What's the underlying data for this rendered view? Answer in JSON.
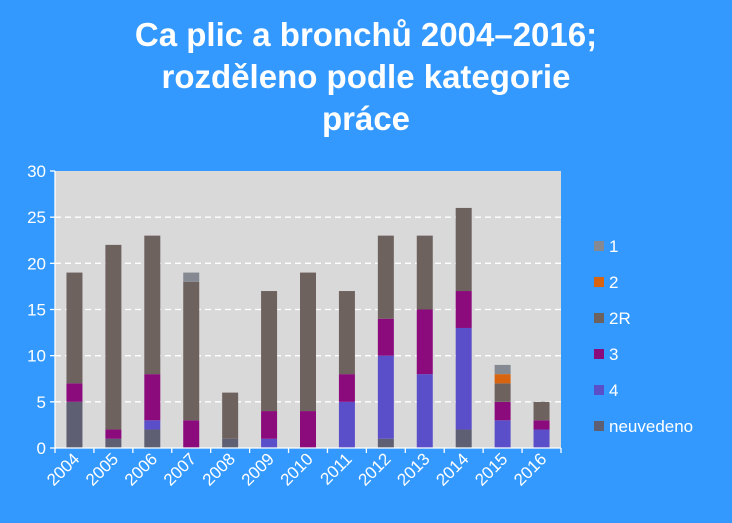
{
  "chart_data": {
    "type": "bar",
    "stacked": true,
    "title_lines": [
      "Ca plic a bronchů 2004–2016;",
      "rozděleno podle kategorie",
      "práce"
    ],
    "xlabel": "",
    "ylabel": "",
    "ylim": [
      0,
      30
    ],
    "yticks": [
      0,
      5,
      10,
      15,
      20,
      25,
      30
    ],
    "grid": true,
    "legend_position": "right",
    "categories": [
      "2004",
      "2005",
      "2006",
      "2007",
      "2008",
      "2009",
      "2010",
      "2011",
      "2012",
      "2013",
      "2014",
      "2015",
      "2016"
    ],
    "series": [
      {
        "name": "neuvedeno",
        "color": "#5f5f73",
        "values": [
          5,
          1,
          2,
          0,
          1,
          0,
          0,
          0,
          1,
          0,
          2,
          0,
          0
        ]
      },
      {
        "name": "4",
        "color": "#5b4fc9",
        "values": [
          0,
          0,
          1,
          0,
          0,
          1,
          0,
          5,
          9,
          8,
          11,
          3,
          2
        ]
      },
      {
        "name": "3",
        "color": "#8b0a7c",
        "values": [
          2,
          1,
          5,
          3,
          0,
          3,
          4,
          3,
          4,
          7,
          4,
          2,
          1
        ]
      },
      {
        "name": "2R",
        "color": "#6e625f",
        "values": [
          12,
          20,
          15,
          15,
          5,
          13,
          15,
          9,
          9,
          8,
          9,
          2,
          2
        ]
      },
      {
        "name": "2",
        "color": "#d9640f",
        "values": [
          0,
          0,
          0,
          0,
          0,
          0,
          0,
          0,
          0,
          0,
          0,
          1,
          0
        ]
      },
      {
        "name": "1",
        "color": "#858a92",
        "values": [
          0,
          0,
          0,
          1,
          0,
          0,
          0,
          0,
          0,
          0,
          0,
          1,
          0
        ]
      }
    ],
    "legend_order": [
      "1",
      "2",
      "2R",
      "3",
      "4",
      "neuvedeno"
    ]
  }
}
